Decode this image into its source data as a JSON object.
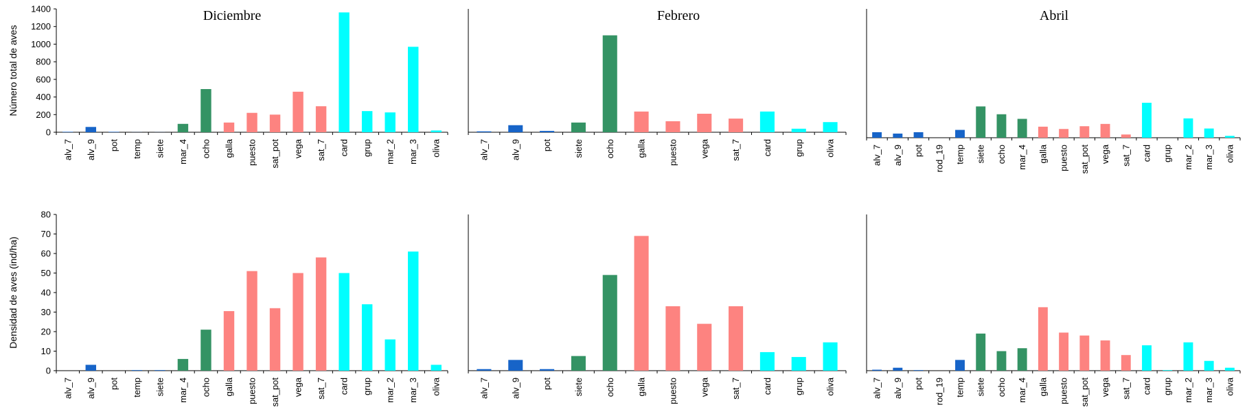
{
  "colors": {
    "blue": "#1764c8",
    "green": "#349364",
    "salmon": "#fd8380",
    "cyan": "#01fefe"
  },
  "chart_data": [
    {
      "type": "bar",
      "row": "top",
      "title": "Diciembre",
      "ylabel": "Número total  de aves",
      "ylim": [
        0,
        1400
      ],
      "yticks": [
        0,
        200,
        400,
        600,
        800,
        1000,
        1200,
        1400
      ],
      "categories": [
        "alv_7",
        "alv_9",
        "pot",
        "temp",
        "siete",
        "mar_4",
        "ocho",
        "galla",
        "puesto",
        "sat_pot",
        "vega",
        "sat_7",
        "card",
        "grup",
        "mar_2",
        "mar_3",
        "oliva"
      ],
      "values": [
        5,
        60,
        5,
        1,
        1,
        95,
        490,
        110,
        220,
        200,
        460,
        295,
        1360,
        240,
        225,
        970,
        20
      ],
      "colors": [
        "blue",
        "blue",
        "blue",
        "blue",
        "blue",
        "green",
        "green",
        "salmon",
        "salmon",
        "salmon",
        "salmon",
        "salmon",
        "cyan",
        "cyan",
        "cyan",
        "cyan",
        "cyan"
      ]
    },
    {
      "type": "bar",
      "row": "top",
      "title": "Febrero",
      "ylabel": "",
      "ylim": [
        0,
        1400
      ],
      "yticks": [],
      "categories": [
        "alv_7",
        "alv_9",
        "pot",
        "siete",
        "ocho",
        "galla",
        "puesto",
        "vega",
        "sat_7",
        "card",
        "grup",
        "oliva"
      ],
      "values": [
        10,
        80,
        15,
        110,
        1100,
        235,
        125,
        210,
        155,
        235,
        40,
        115
      ],
      "colors": [
        "blue",
        "blue",
        "blue",
        "green",
        "green",
        "salmon",
        "salmon",
        "salmon",
        "salmon",
        "cyan",
        "cyan",
        "cyan"
      ]
    },
    {
      "type": "bar",
      "row": "top",
      "title": "Abril",
      "ylabel": "",
      "ylim": [
        0,
        1400
      ],
      "yticks": [],
      "categories": [
        "alv_7",
        "alv_9",
        "pot",
        "rod_19",
        "temp",
        "siete",
        "ocho",
        "mar_4",
        "galla",
        "puesto",
        "sat_pot",
        "vega",
        "sat_7",
        "card",
        "grup",
        "mar_2",
        "mar_3",
        "oliva"
      ],
      "values": [
        60,
        45,
        60,
        0,
        85,
        340,
        255,
        205,
        120,
        95,
        125,
        150,
        35,
        380,
        0,
        210,
        100,
        20
      ],
      "colors": [
        "blue",
        "blue",
        "blue",
        "blue",
        "blue",
        "green",
        "green",
        "green",
        "salmon",
        "salmon",
        "salmon",
        "salmon",
        "salmon",
        "cyan",
        "cyan",
        "cyan",
        "cyan",
        "cyan"
      ]
    },
    {
      "type": "bar",
      "row": "bottom",
      "title": "",
      "ylabel": "Densidad de aves (ind/ha)",
      "ylim": [
        0,
        80
      ],
      "yticks": [
        0,
        10,
        20,
        30,
        40,
        50,
        60,
        70,
        80
      ],
      "categories": [
        "alv_7",
        "alv_9",
        "pot",
        "temp",
        "siete",
        "mar_4",
        "ocho",
        "galla",
        "puesto",
        "sat_pot",
        "vega",
        "sat_7",
        "card",
        "grup",
        "mar_2",
        "mar_3",
        "oliva"
      ],
      "values": [
        0,
        3,
        0,
        0.3,
        0.3,
        6,
        21,
        30.5,
        51,
        32,
        50,
        58,
        50,
        34,
        16,
        61,
        3
      ],
      "colors": [
        "blue",
        "blue",
        "blue",
        "blue",
        "blue",
        "green",
        "green",
        "salmon",
        "salmon",
        "salmon",
        "salmon",
        "salmon",
        "cyan",
        "cyan",
        "cyan",
        "cyan",
        "cyan"
      ]
    },
    {
      "type": "bar",
      "row": "bottom",
      "title": "",
      "ylabel": "",
      "ylim": [
        0,
        80
      ],
      "yticks": [],
      "categories": [
        "alv_7",
        "alv_9",
        "pot",
        "siete",
        "ocho",
        "galla",
        "puesto",
        "vega",
        "sat_7",
        "card",
        "grup",
        "oliva"
      ],
      "values": [
        0.8,
        5.5,
        0.8,
        7.5,
        49,
        69,
        33,
        24,
        33,
        9.5,
        7,
        14.5
      ],
      "colors": [
        "blue",
        "blue",
        "blue",
        "green",
        "green",
        "salmon",
        "salmon",
        "salmon",
        "salmon",
        "cyan",
        "cyan",
        "cyan"
      ]
    },
    {
      "type": "bar",
      "row": "bottom",
      "title": "",
      "ylabel": "",
      "ylim": [
        0,
        80
      ],
      "yticks": [],
      "categories": [
        "alv_7",
        "alv_9",
        "pot",
        "rod_19",
        "temp",
        "siete",
        "ocho",
        "mar_4",
        "galla",
        "puesto",
        "sat_pot",
        "vega",
        "sat_7",
        "card",
        "grup",
        "mar_2",
        "mar_3",
        "oliva"
      ],
      "values": [
        0.5,
        1.5,
        0.3,
        0,
        5.5,
        19,
        10,
        11.5,
        32.5,
        19.5,
        18,
        15.5,
        8,
        13,
        0.3,
        14.5,
        5,
        1.5
      ],
      "colors": [
        "blue",
        "blue",
        "blue",
        "blue",
        "blue",
        "green",
        "green",
        "green",
        "salmon",
        "salmon",
        "salmon",
        "salmon",
        "salmon",
        "cyan",
        "cyan",
        "cyan",
        "cyan",
        "cyan"
      ]
    }
  ]
}
